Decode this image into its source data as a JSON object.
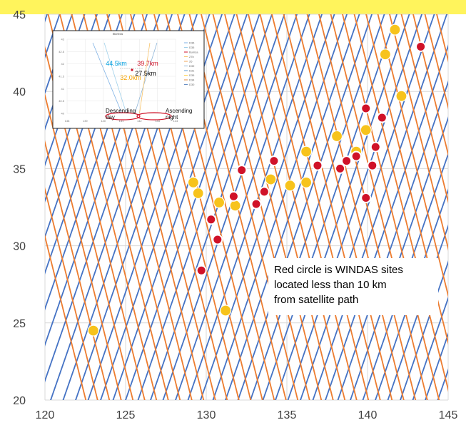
{
  "chart_data": {
    "type": "scatter",
    "xlim": [
      120,
      145
    ],
    "ylim": [
      20,
      45
    ],
    "x_ticks": [
      120,
      125,
      130,
      135,
      140,
      145
    ],
    "y_ticks": [
      20,
      25,
      30,
      35,
      40,
      45
    ],
    "grid": true,
    "colors": {
      "descending_track": "#4472c4",
      "ascending_track": "#ed7d31",
      "yellow_site": "#f7c31c",
      "red_site": "#d01228",
      "highlight": "#fff45c"
    },
    "series": [
      {
        "points": [
          [
            123,
            24.5
          ],
          [
            129.2,
            34.1
          ],
          [
            129.5,
            33.4
          ],
          [
            130.8,
            32.8
          ],
          [
            131.2,
            25.8
          ],
          [
            131.8,
            32.6
          ],
          [
            134,
            34.3
          ],
          [
            135.2,
            33.9
          ],
          [
            136.2,
            36.1
          ],
          [
            136.2,
            34.1
          ],
          [
            138.1,
            37.1
          ],
          [
            139.3,
            36.1
          ],
          [
            139.9,
            37.5
          ],
          [
            141.1,
            42.4
          ],
          [
            141.7,
            44
          ],
          [
            142.1,
            39.7
          ]
        ]
      },
      {
        "points": [
          [
            129.7,
            28.4
          ],
          [
            130.3,
            31.7
          ],
          [
            130.7,
            30.4
          ],
          [
            131.7,
            33.2
          ],
          [
            132.2,
            34.9
          ],
          [
            133.1,
            32.7
          ],
          [
            133.6,
            33.5
          ],
          [
            134.2,
            35.5
          ],
          [
            136.9,
            35.2
          ],
          [
            138.3,
            35
          ],
          [
            138.7,
            35.5
          ],
          [
            139.3,
            35.8
          ],
          [
            139.9,
            33.1
          ],
          [
            139.9,
            38.9
          ],
          [
            140.3,
            35.2
          ],
          [
            140.5,
            36.4
          ],
          [
            140.9,
            38.3
          ],
          [
            143.3,
            42.9
          ]
        ]
      }
    ],
    "annotation": "Red circle is WINDAS sites\nlocated less than 10 km\nfrom satellite path",
    "inset": {
      "title": "Bumsa",
      "distances": [
        "44.5km",
        "39.7km",
        "32.0km",
        "27.5km"
      ],
      "distance_colors": [
        "#1f6fc5",
        "#00a0e0",
        "#d01228",
        "#f5a300"
      ],
      "labels": [
        "Descending\nday",
        "Ascending\nnight"
      ],
      "x_ticks": [
        "138",
        "139",
        "140",
        "141",
        "142",
        "143",
        "144"
      ],
      "y_ticks": [
        "43",
        "42.5",
        "42",
        "41.5",
        "41",
        "40.5",
        "40"
      ],
      "legend": [
        "D36",
        "D35",
        "Bumsa",
        "27b",
        "26",
        "D39",
        "D31",
        "D35",
        "D34",
        "D30"
      ]
    }
  }
}
